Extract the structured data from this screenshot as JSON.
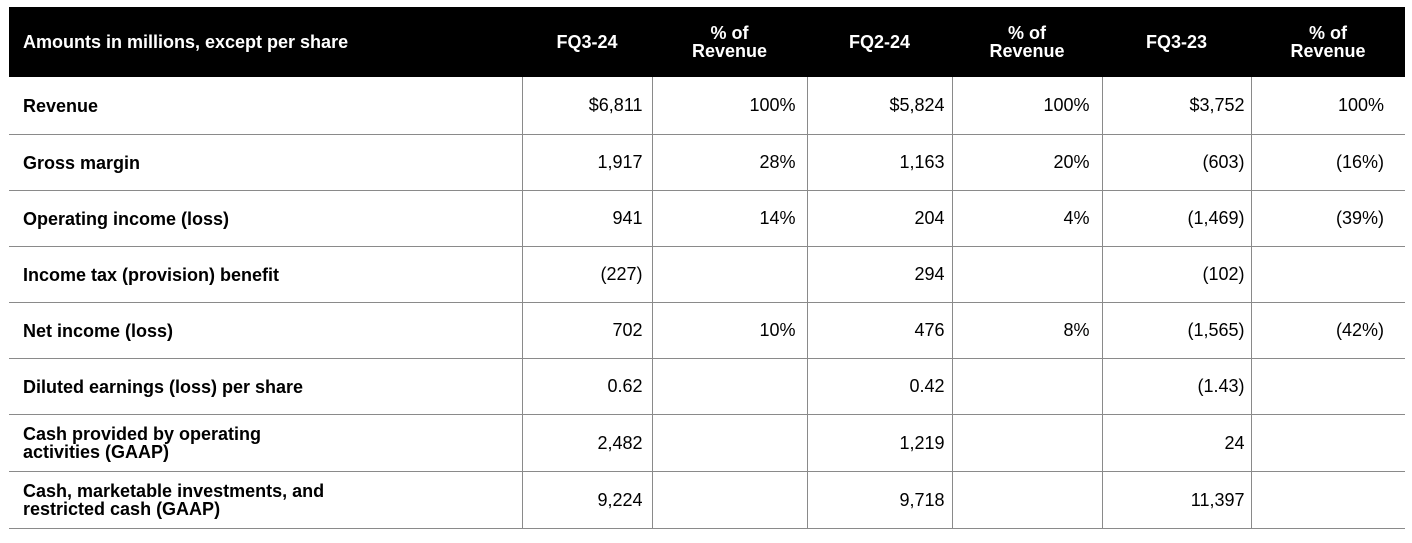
{
  "header": {
    "label": "Amounts in millions, except per share",
    "columns": [
      "FQ3-24",
      "% of\nRevenue",
      "FQ2-24",
      "% of\nRevenue",
      "FQ3-23",
      "% of\nRevenue"
    ]
  },
  "rows": [
    {
      "label": "Revenue",
      "values": [
        "$6,811",
        "100%",
        "$5,824",
        "100%",
        "$3,752",
        "100%"
      ]
    },
    {
      "label": "Gross margin",
      "values": [
        "1,917",
        "28%",
        "1,163",
        "20%",
        "(603)",
        "(16%)"
      ]
    },
    {
      "label": "Operating income (loss)",
      "values": [
        "941",
        "14%",
        "204",
        "4%",
        "(1,469)",
        "(39%)"
      ]
    },
    {
      "label": "Income tax (provision) benefit",
      "values": [
        "(227)",
        "",
        "294",
        "",
        "(102)",
        ""
      ]
    },
    {
      "label": "Net income (loss)",
      "values": [
        "702",
        "10%",
        "476",
        "8%",
        "(1,565)",
        "(42%)"
      ]
    },
    {
      "label": "Diluted earnings (loss) per share",
      "values": [
        "0.62",
        "",
        "0.42",
        "",
        "(1.43)",
        ""
      ]
    },
    {
      "label": "Cash provided by operating\nactivities (GAAP)",
      "values": [
        "2,482",
        "",
        "1,219",
        "",
        "24",
        ""
      ]
    },
    {
      "label": "Cash, marketable investments, and\nrestricted cash (GAAP)",
      "values": [
        "9,224",
        "",
        "9,718",
        "",
        "11,397",
        ""
      ]
    }
  ]
}
